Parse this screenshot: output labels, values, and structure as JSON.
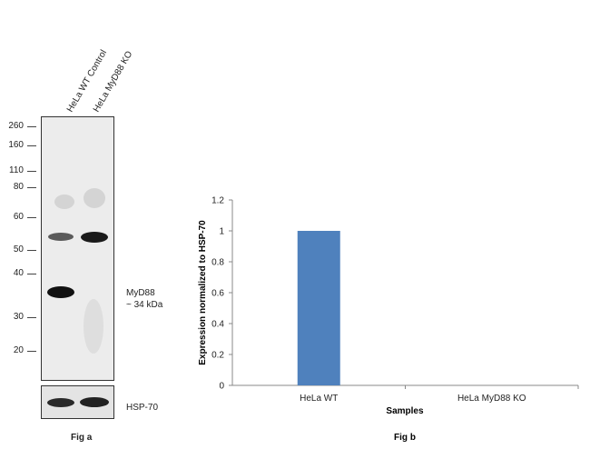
{
  "western_blot": {
    "lanes": [
      "HeLa WT Control",
      "HeLa MyD88 KO"
    ],
    "mw_markers": [
      "260",
      "160",
      "110",
      "80",
      "60",
      "50",
      "40",
      "30",
      "20"
    ],
    "target_label_line1": "MyD88",
    "target_label_line2": "~ 34 kDa",
    "loading_control_label": "HSP-70",
    "fig_label": "Fig a"
  },
  "chart_data": {
    "type": "bar",
    "categories": [
      "HeLa WT",
      "HeLa MyD88 KO"
    ],
    "values": [
      1.0,
      0.0
    ],
    "xlabel": "Samples",
    "ylabel": "Expression normalized to HSP-70",
    "ylim": [
      0,
      1.2
    ],
    "yticks": [
      "0",
      "0.2",
      "0.4",
      "0.6",
      "0.8",
      "1",
      "1.2"
    ],
    "bar_color": "#4f81bd",
    "grid": false,
    "fig_label": "Fig b"
  }
}
